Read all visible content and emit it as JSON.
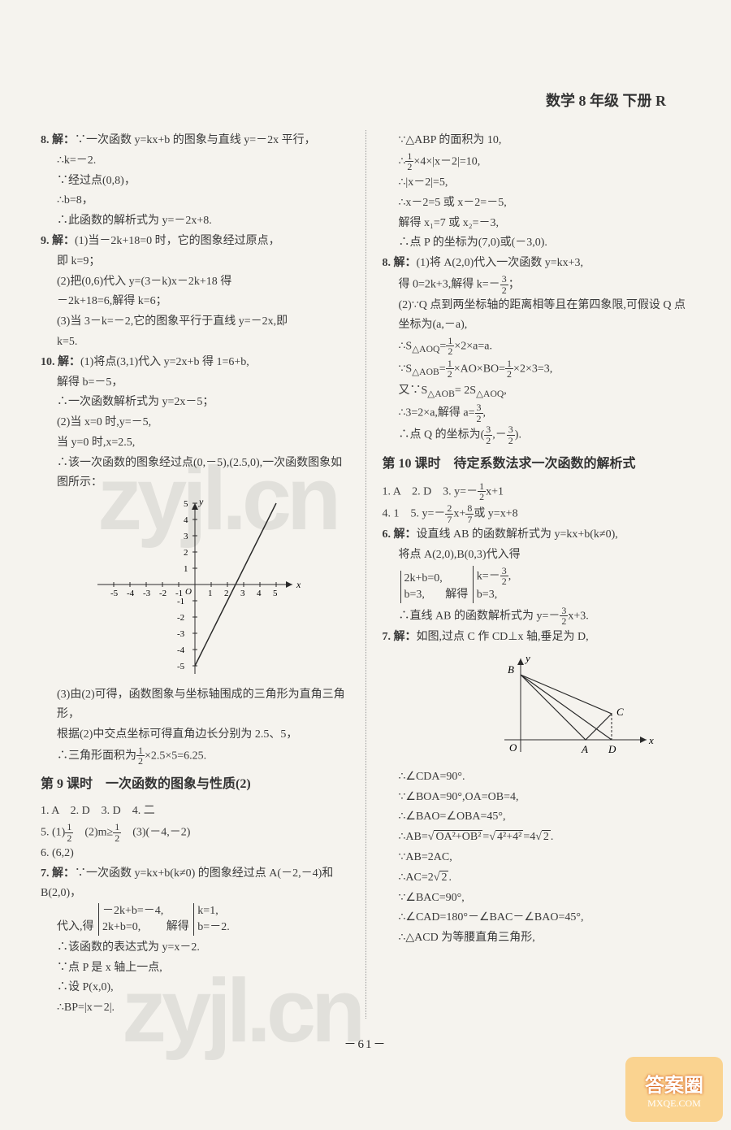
{
  "header": "数学 8 年级 下册 R",
  "pageNum": "－61－",
  "watermark": "zyjl.cn",
  "badge": {
    "top": "答案圈",
    "bottom": "MXQE.COM"
  },
  "left": {
    "p8": {
      "label": "8. 解：",
      "l1": "∵一次函数 y=kx+b 的图象与直线 y=－2x 平行，",
      "l2": "∴k=－2.",
      "l3": "∵经过点(0,8)，",
      "l4": "∴b=8，",
      "l5": "∴此函数的解析式为 y=－2x+8."
    },
    "p9": {
      "label": "9. 解：",
      "l1": "(1)当－2k+18=0 时，它的图象经过原点，",
      "l2": "即 k=9；",
      "l3": "(2)把(0,6)代入 y=(3－k)x－2k+18 得",
      "l4": "－2k+18=6,解得 k=6；",
      "l5": "(3)当 3－k=－2,它的图象平行于直线 y=－2x,即",
      "l6": "k=5."
    },
    "p10": {
      "label": "10. 解：",
      "l1": "(1)将点(3,1)代入 y=2x+b 得 1=6+b,",
      "l2": "解得 b=－5，",
      "l3": "∴一次函数解析式为 y=2x－5；",
      "l4": "(2)当 x=0 时,y=－5,",
      "l5": "当 y=0 时,x=2.5,",
      "l6": "∴该一次函数的图象经过点(0,－5),(2.5,0),一次函数图象如图所示：",
      "l7": "(3)由(2)可得，函数图象与坐标轴围成的三角形为直角三角形，",
      "l8": "根据(2)中交点坐标可得直角边长分别为 2.5、5，",
      "l9a": "∴三角形面积为",
      "l9b": "×2.5×5=6.25."
    },
    "section9": {
      "title": "第 9 课时　一次函数的图象与性质(2)",
      "row1": "1. A　2. D　3. D　4. 二",
      "row5a": "5. (1)",
      "row5b": "　(2)m≥",
      "row5c": "　(3)(－4,－2)",
      "row6": "6. (6,2)",
      "p7label": "7. 解：",
      "p7l1": "∵一次函数 y=kx+b(k≠0) 的图象经过点 A(－2,－4)和 B(2,0)，",
      "p7l2a": "代入,得",
      "p7c1a": "－2k+b=－4,",
      "p7c1b": "2k+b=0,",
      "p7l2b": "解得",
      "p7c2a": "k=1,",
      "p7c2b": "b=－2.",
      "p7l3": "∴该函数的表达式为 y=x－2.",
      "p7l4": "∵点 P 是 x 轴上一点,",
      "p7l5": "∴设 P(x,0),",
      "p7l6": "∴BP=|x－2|."
    },
    "graph1": {
      "xmin": -5,
      "xmax": 5,
      "ymin": -5,
      "ymax": 5,
      "xticks": [
        "-5",
        "-4",
        "-3",
        "-2",
        "-1",
        "1",
        "2",
        "3",
        "4",
        "5"
      ],
      "yticks": [
        "1",
        "2",
        "3",
        "4",
        "5",
        "-1",
        "-2",
        "-3",
        "-4",
        "-5"
      ],
      "line_p1": [
        0,
        -5
      ],
      "line_p2": [
        5,
        5
      ],
      "axis_color": "#2a2a2a",
      "label_fontsize": 11,
      "origin_label": "O",
      "xlabel": "x",
      "ylabel": "y"
    }
  },
  "right": {
    "cont": {
      "l1": "∵△ABP 的面积为 10,",
      "l2a": "∴",
      "l2b": "×4×|x－2|=10,",
      "l3": "∴|x－2|=5,",
      "l4": "∴x－2=5 或 x－2=－5,",
      "l5": "解得 x₁=7 或 x₂=－3,",
      "l6": "∴点 P 的坐标为(7,0)或(－3,0)."
    },
    "p8": {
      "label": "8. 解：",
      "l1": "(1)将 A(2,0)代入一次函数 y=kx+3,",
      "l2a": "得 0=2k+3,解得 k=－",
      "l2b": "；",
      "l3": "(2)∵Q 点到两坐标轴的距离相等且在第四象限,可假设 Q 点坐标为(a,－a),",
      "l4a": "∴S",
      "l4sub": "△AOQ",
      "l4b": "=",
      "l4c": "×2×a=a.",
      "l5a": "∵S",
      "l5sub": "△AOB",
      "l5b": "=",
      "l5c": "×AO×BO=",
      "l5d": "×2×3=3,",
      "l6a": "又∵S",
      "l6sub1": "△AOB",
      "l6b": "= 2S",
      "l6sub2": "△AOQ",
      "l6c": ",",
      "l7a": "∴3=2×a,解得 a=",
      "l7b": ",",
      "l8a": "∴点 Q 的坐标为(",
      "l8b": ",－",
      "l8c": ")."
    },
    "section10": {
      "title": "第 10 课时　待定系数法求一次函数的解析式",
      "row1a": "1. A　2. D　3. y=－",
      "row1b": "x+1",
      "row4a": "4. 1　5. y=－",
      "row4b": "x+",
      "row4c": "或 y=x+8",
      "p6label": "6. 解：",
      "p6l1": "设直线 AB 的函数解析式为 y=kx+b(k≠0),",
      "p6l2": "将点 A(2,0),B(0,3)代入得",
      "p6c1a": "2k+b=0,",
      "p6c1b": "b=3,",
      "p6l3a": "解得",
      "p6c2a": "k=－",
      "p6c2b": ",",
      "p6c2c": "b=3,",
      "p6l4a": "∴直线 AB 的函数解析式为 y=－",
      "p6l4b": "x+3.",
      "p7label": "7. 解：",
      "p7l1": "如图,过点 C 作 CD⊥x 轴,垂足为 D,",
      "p7l2": "∴∠CDA=90°.",
      "p7l3": "∵∠BOA=90°,OA=OB=4,",
      "p7l4": "∴∠BAO=∠OBA=45°,",
      "p7l5a": "∴AB=",
      "p7sqrt1": "OA²+OB²",
      "p7l5b": "=",
      "p7sqrt2": "4²+4²",
      "p7l5c": "=4",
      "p7sqrt3": "2",
      "p7l5d": ".",
      "p7l6": "∵AB=2AC,",
      "p7l7a": "∴AC=2",
      "p7sqrt4": "2",
      "p7l7b": ".",
      "p7l8": "∵∠BAC=90°,",
      "p7l9": "∴∠CAD=180°－∠BAC－∠BAO=45°,",
      "p7l10": "∴△ACD 为等腰直角三角形,"
    },
    "graph2": {
      "labels": {
        "O": "O",
        "A": "A",
        "B": "B",
        "C": "C",
        "D": "D",
        "x": "x",
        "y": "y"
      },
      "O": [
        0,
        0
      ],
      "A": [
        80,
        0
      ],
      "B": [
        0,
        80
      ],
      "C": [
        112,
        32
      ],
      "D": [
        112,
        0
      ],
      "axis_color": "#2a2a2a",
      "label_fontsize": 13
    }
  },
  "fractions": {
    "half": {
      "n": "1",
      "d": "2"
    },
    "threeHalf": {
      "n": "3",
      "d": "2"
    },
    "twoSeven": {
      "n": "2",
      "d": "7"
    },
    "eightSeven": {
      "n": "8",
      "d": "7"
    }
  }
}
